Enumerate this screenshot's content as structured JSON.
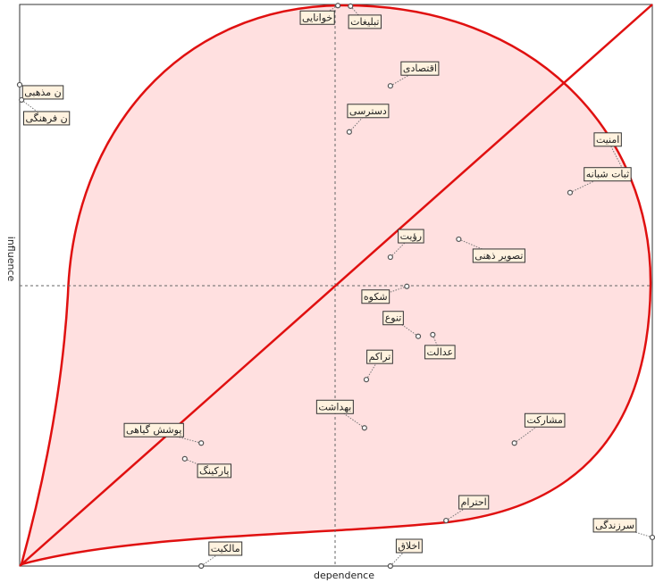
{
  "chart_data": {
    "type": "scatter",
    "xlabel": "dependence",
    "ylabel": "influence",
    "xlim": [
      0,
      100
    ],
    "ylim": [
      0,
      100
    ],
    "labels": [
      "خوانایی",
      "تبلیغات",
      "اقتصادی",
      "ن مذهبی",
      "ن فرهنگی",
      "دسترسی",
      "امنیت",
      "ثبات شبانه",
      "رؤیت",
      "تصویر ذهنی",
      "شکوه",
      "تنوع",
      "عدالت",
      "تراکم",
      "بهداشت",
      "مشارکت",
      "پوشش گیاهی",
      "پارکینگ",
      "احترام",
      "سرزندگی",
      "مالکیت",
      "اخلاق"
    ],
    "x": [
      50.3,
      52.3,
      58.6,
      0,
      0.3,
      52.1,
      95.5,
      87.0,
      58.6,
      69.4,
      61.2,
      63.0,
      65.3,
      54.8,
      54.5,
      78.2,
      28.7,
      26.1,
      67.4,
      100,
      28.7,
      58.6
    ],
    "values": [
      99.8,
      99.7,
      85.5,
      85.7,
      83.0,
      77.3,
      70.3,
      66.5,
      55.0,
      58.2,
      49.8,
      40.9,
      41.2,
      33.2,
      24.6,
      21.9,
      21.9,
      19.1,
      8.1,
      5.1,
      0,
      0
    ],
    "color": "#555555"
  }
}
